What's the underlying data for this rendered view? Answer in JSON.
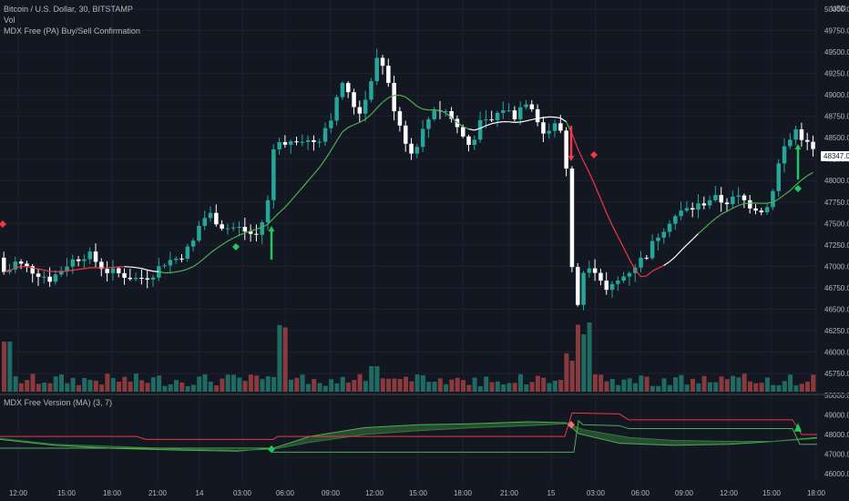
{
  "legend": {
    "symbol": "Bitcoin / U.S. Dollar, 30, BITSTAMP",
    "volume": "Vol",
    "indicator": "MDX Free (PA) Buy/Sell Confirmation",
    "sub_indicator": "MDX Free Version (MA) (3, 7)"
  },
  "price_axis": {
    "currency": "USD",
    "labels": [
      "50000.00",
      "49750.00",
      "49500.00",
      "49250.00",
      "49000.00",
      "48750.00",
      "48500.00",
      "48250.00",
      "48000.00",
      "47750.00",
      "47500.00",
      "47250.00",
      "47000.00",
      "46750.00",
      "46500.00",
      "46250.00",
      "46000.00",
      "45750.00"
    ],
    "current_price": "48347.04"
  },
  "sub_axis": {
    "labels": [
      "50000.00",
      "49000.00",
      "48000.00",
      "47000.00",
      "46000.00"
    ]
  },
  "time_axis": {
    "labels": [
      "12:00",
      "15:00",
      "18:00",
      "21:00",
      "14",
      "03:00",
      "06:00",
      "09:00",
      "12:00",
      "15:00",
      "18:00",
      "21:00",
      "15",
      "03:00",
      "06:00",
      "09:00",
      "12:00",
      "15:00",
      "18:00"
    ]
  },
  "colors": {
    "background": "#131722",
    "grid": "#1e222d",
    "up": "#26a69a",
    "down": "#ffffff",
    "vol_up": "#1f6b64",
    "vol_down": "#8a3a3d",
    "ma_green": "#4caf50",
    "ma_red": "#f23645",
    "ma_white": "#ffffff",
    "buy": "#22c55e",
    "sell": "#f23645"
  }
}
